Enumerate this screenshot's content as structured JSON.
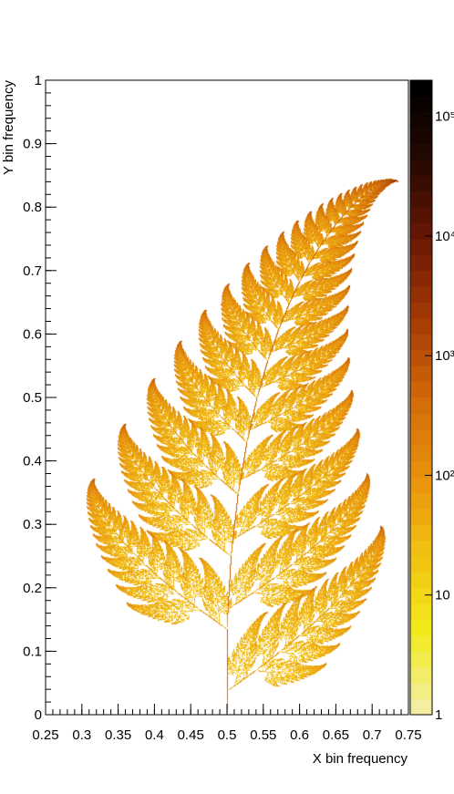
{
  "chart_data": {
    "type": "heatmap",
    "title": "",
    "xlabel": "X bin frequency",
    "ylabel": "Y bin frequency",
    "xlim": [
      0.25,
      0.75
    ],
    "ylim": [
      0,
      1
    ],
    "x_ticks": [
      "0.25",
      "0.3",
      "0.35",
      "0.4",
      "0.45",
      "0.5",
      "0.55",
      "0.6",
      "0.65",
      "0.7",
      "0.75"
    ],
    "y_ticks": [
      "0",
      "0.1",
      "0.2",
      "0.3",
      "0.4",
      "0.5",
      "0.6",
      "0.7",
      "0.8",
      "0.9",
      "1"
    ],
    "colorbar": {
      "scale": "log",
      "range": [
        1,
        200000
      ],
      "tick_labels": [
        "1",
        "10",
        "10²",
        "10³",
        "10⁴",
        "10⁵"
      ],
      "colors_low_to_high": [
        "#f3eea0",
        "#f2ea1a",
        "#f1c012",
        "#e8900c",
        "#d26a08",
        "#a63a06",
        "#6e1804",
        "#2a0a02",
        "#000000"
      ]
    },
    "pattern": "Barnsley fern density histogram",
    "stem": {
      "base": [
        0.5,
        0.0
      ],
      "tip": [
        0.69,
        0.85
      ]
    },
    "fern_colors": {
      "sparse": "#f2c21a",
      "mid": "#e08a10",
      "dense": "#8a2a06"
    }
  }
}
